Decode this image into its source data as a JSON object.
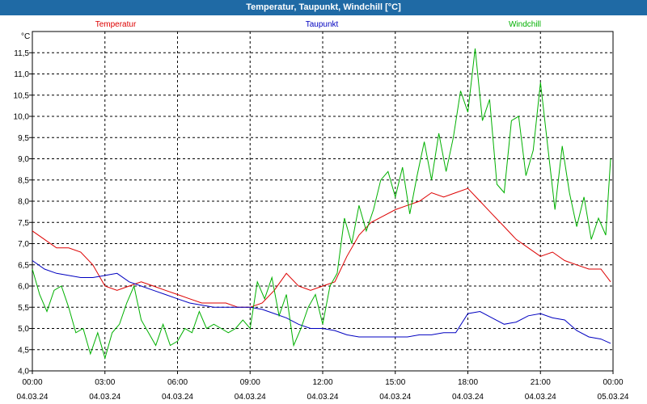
{
  "window": {
    "title": "Temperatur, Taupunkt, Windchill [°C]"
  },
  "colors": {
    "titlebar": "#1f6aa5",
    "temperatur": "#dd0000",
    "taupunkt": "#0000c0",
    "windchill": "#00b000",
    "grid": "#000000"
  },
  "chart_data": {
    "type": "line",
    "title": "Temperatur, Taupunkt, Windchill [°C]",
    "ylabel": "°C",
    "xlabel": "",
    "ylim": [
      4.0,
      12.0
    ],
    "y_ticks": [
      "4,0",
      "4,5",
      "5,0",
      "5,5",
      "6,0",
      "6,5",
      "7,0",
      "7,5",
      "8,0",
      "8,5",
      "9,0",
      "9,5",
      "10,0",
      "10,5",
      "11,0",
      "11,5"
    ],
    "x_range_hours": [
      0,
      24
    ],
    "x_ticks": [
      {
        "time": "00:00",
        "date": "04.03.24"
      },
      {
        "time": "03:00",
        "date": "04.03.24"
      },
      {
        "time": "06:00",
        "date": "04.03.24"
      },
      {
        "time": "09:00",
        "date": "04.03.24"
      },
      {
        "time": "12:00",
        "date": "04.03.24"
      },
      {
        "time": "15:00",
        "date": "04.03.24"
      },
      {
        "time": "18:00",
        "date": "04.03.24"
      },
      {
        "time": "21:00",
        "date": "04.03.24"
      },
      {
        "time": "00:00",
        "date": "05.03.24"
      }
    ],
    "grid": true,
    "series": [
      {
        "name": "Temperatur",
        "color": "#dd0000",
        "x": [
          0,
          0.5,
          1,
          1.5,
          2,
          2.5,
          3,
          3.5,
          4,
          4.5,
          5,
          5.5,
          6,
          6.5,
          7,
          7.5,
          8,
          8.5,
          9,
          9.5,
          10,
          10.5,
          11,
          11.5,
          12,
          12.5,
          13,
          13.5,
          14,
          14.5,
          15,
          15.5,
          16,
          16.5,
          17,
          17.5,
          18,
          18.5,
          19,
          19.5,
          20,
          20.5,
          21,
          21.5,
          22,
          22.5,
          23,
          23.5,
          23.9
        ],
        "values": [
          7.3,
          7.1,
          6.9,
          6.9,
          6.8,
          6.5,
          6.0,
          5.9,
          6.0,
          6.1,
          6.0,
          5.9,
          5.8,
          5.7,
          5.6,
          5.6,
          5.6,
          5.5,
          5.5,
          5.6,
          5.9,
          6.3,
          6.0,
          5.9,
          6.0,
          6.1,
          6.7,
          7.2,
          7.5,
          7.65,
          7.8,
          7.9,
          8.0,
          8.2,
          8.1,
          8.2,
          8.3,
          8.0,
          7.7,
          7.4,
          7.1,
          6.9,
          6.7,
          6.8,
          6.6,
          6.5,
          6.4,
          6.4,
          6.1
        ]
      },
      {
        "name": "Taupunkt",
        "color": "#0000c0",
        "x": [
          0,
          0.5,
          1,
          1.5,
          2,
          2.5,
          3,
          3.5,
          4,
          4.5,
          5,
          5.5,
          6,
          6.5,
          7,
          7.5,
          8,
          8.5,
          9,
          9.5,
          10,
          10.5,
          11,
          11.5,
          12,
          12.5,
          13,
          13.5,
          14,
          14.5,
          15,
          15.5,
          16,
          16.5,
          17,
          17.5,
          18,
          18.5,
          19,
          19.5,
          20,
          20.5,
          21,
          21.5,
          22,
          22.5,
          23,
          23.5,
          23.9
        ],
        "values": [
          6.6,
          6.4,
          6.3,
          6.25,
          6.2,
          6.2,
          6.25,
          6.3,
          6.1,
          6.0,
          5.9,
          5.8,
          5.7,
          5.6,
          5.55,
          5.5,
          5.5,
          5.5,
          5.5,
          5.45,
          5.35,
          5.25,
          5.1,
          5.0,
          5.0,
          4.95,
          4.85,
          4.8,
          4.8,
          4.8,
          4.8,
          4.8,
          4.85,
          4.85,
          4.9,
          4.9,
          5.35,
          5.4,
          5.25,
          5.1,
          5.15,
          5.3,
          5.35,
          5.25,
          5.2,
          4.95,
          4.8,
          4.75,
          4.65
        ]
      },
      {
        "name": "Windchill",
        "color": "#00b000",
        "x": [
          0,
          0.3,
          0.6,
          0.9,
          1.2,
          1.5,
          1.8,
          2.1,
          2.4,
          2.7,
          3.0,
          3.3,
          3.6,
          3.9,
          4.2,
          4.5,
          4.8,
          5.1,
          5.4,
          5.7,
          6.0,
          6.3,
          6.6,
          6.9,
          7.2,
          7.5,
          7.8,
          8.1,
          8.4,
          8.7,
          9.0,
          9.3,
          9.6,
          9.9,
          10.2,
          10.5,
          10.8,
          11.1,
          11.4,
          11.7,
          12.0,
          12.3,
          12.6,
          12.9,
          13.2,
          13.5,
          13.8,
          14.1,
          14.4,
          14.7,
          15.0,
          15.3,
          15.6,
          15.9,
          16.2,
          16.5,
          16.8,
          17.1,
          17.4,
          17.7,
          18.0,
          18.3,
          18.6,
          18.9,
          19.2,
          19.5,
          19.8,
          20.1,
          20.4,
          20.7,
          21.0,
          21.3,
          21.6,
          21.9,
          22.2,
          22.5,
          22.8,
          23.1,
          23.4,
          23.7,
          23.9
        ],
        "values": [
          6.4,
          5.8,
          5.4,
          5.9,
          6.0,
          5.5,
          4.9,
          5.0,
          4.4,
          4.9,
          4.3,
          4.9,
          5.1,
          5.6,
          6.0,
          5.2,
          4.9,
          4.6,
          5.1,
          4.6,
          4.7,
          5.0,
          4.9,
          5.4,
          5.0,
          5.1,
          5.0,
          4.9,
          5.0,
          5.2,
          5.0,
          6.1,
          5.7,
          6.2,
          5.3,
          5.8,
          4.6,
          5.0,
          5.5,
          5.8,
          5.1,
          6.0,
          6.3,
          7.6,
          7.0,
          7.9,
          7.3,
          7.8,
          8.5,
          8.7,
          8.1,
          8.8,
          7.7,
          8.6,
          9.4,
          8.5,
          9.6,
          8.7,
          9.5,
          10.6,
          10.1,
          11.6,
          9.9,
          10.4,
          8.4,
          8.2,
          9.9,
          10.0,
          8.6,
          9.2,
          10.8,
          9.3,
          7.8,
          9.3,
          8.2,
          7.4,
          8.1,
          7.1,
          7.6,
          7.2,
          9.0
        ]
      }
    ]
  }
}
